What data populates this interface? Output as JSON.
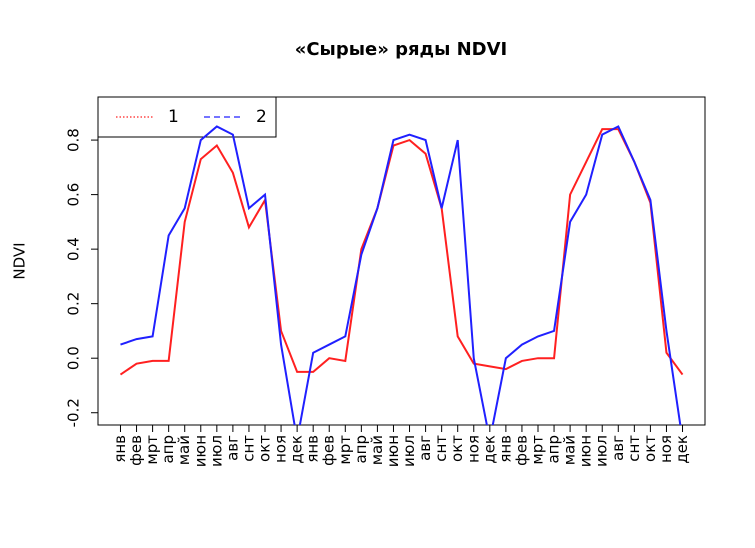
{
  "chart_data": {
    "type": "line",
    "title": "«Сырые» ряды NDVI",
    "y_label": "NDVI",
    "categories": [
      "янв",
      "фев",
      "мрт",
      "апр",
      "май",
      "июн",
      "июл",
      "авг",
      "снт",
      "окт",
      "ноя",
      "дек",
      "янв",
      "фев",
      "мрт",
      "апр",
      "май",
      "июн",
      "июл",
      "авг",
      "снт",
      "окт",
      "ноя",
      "дек",
      "янв",
      "фев",
      "мрт",
      "апр",
      "май",
      "июн",
      "июл",
      "авг",
      "снт",
      "окт",
      "ноя",
      "дек"
    ],
    "series": [
      {
        "name": "1",
        "color": "#ff2020",
        "values": [
          -0.06,
          -0.02,
          -0.01,
          -0.01,
          0.5,
          0.73,
          0.78,
          0.68,
          0.48,
          0.58,
          0.1,
          -0.05,
          -0.05,
          0.0,
          -0.01,
          0.4,
          0.55,
          0.78,
          0.8,
          0.75,
          0.55,
          0.08,
          -0.02,
          -0.03,
          -0.04,
          -0.01,
          0.0,
          0.0,
          0.6,
          0.72,
          0.84,
          0.84,
          0.72,
          0.57,
          0.02,
          -0.06
        ]
      },
      {
        "name": "2",
        "color": "#2020ff",
        "values": [
          0.05,
          0.07,
          0.08,
          0.45,
          0.55,
          0.8,
          0.85,
          0.82,
          0.55,
          0.6,
          0.05,
          -0.3,
          0.02,
          0.05,
          0.08,
          0.38,
          0.55,
          0.8,
          0.82,
          0.8,
          0.55,
          0.8,
          0.0,
          -0.3,
          0.0,
          0.05,
          0.08,
          0.1,
          0.5,
          0.6,
          0.82,
          0.85,
          0.72,
          0.58,
          0.1,
          -0.3
        ]
      }
    ],
    "ylim": [
      -0.245,
      0.958
    ],
    "yticks": [
      -0.2,
      {
        "value": 0,
        "label": "0.0"
      },
      0.2,
      0.4,
      0.6,
      0.8
    ],
    "legend": "top-left"
  }
}
